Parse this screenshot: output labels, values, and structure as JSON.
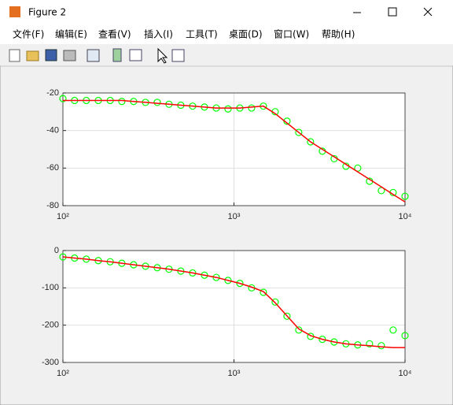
{
  "window_title": "Figure 2",
  "menu": [
    "文件(F)",
    "编辑(E)",
    "查看(V)",
    "插入(I)",
    "工具(T)",
    "桌面(D)",
    "窗口(W)",
    "帮助(H)"
  ],
  "chart_data": [
    {
      "type": "line",
      "xscale": "log",
      "grid": true,
      "x": [
        100,
        117,
        137,
        161,
        189,
        221,
        259,
        304,
        356,
        417,
        489,
        573,
        672,
        788,
        923,
        1082,
        1268,
        1486,
        1742,
        2041,
        2392,
        2804,
        3286,
        3852,
        4514,
        5291,
        6202,
        7269,
        8519,
        10000
      ],
      "series": [
        {
          "color": "#00ff00",
          "marker": "circle",
          "values": [
            -23,
            -24,
            -24,
            -24,
            -24,
            -24.5,
            -24.5,
            -25,
            -25,
            -26,
            -26.5,
            -27,
            -27.5,
            -28,
            -28.5,
            -28,
            -28,
            -27,
            -30,
            -35,
            -41,
            -46,
            -51,
            -55,
            -59,
            -60,
            -67,
            -72,
            -73,
            -75
          ]
        },
        {
          "color": "#ff0000",
          "marker": "none",
          "values": [
            -24,
            -24,
            -24,
            -24,
            -24,
            -24,
            -24.5,
            -25,
            -25.5,
            -26,
            -26.5,
            -27,
            -27.5,
            -28,
            -28,
            -28,
            -27.5,
            -27,
            -31,
            -36,
            -41,
            -46,
            -50,
            -54,
            -58,
            -62,
            -66,
            -70,
            -74,
            -78
          ]
        }
      ],
      "xlim": [
        100,
        10000
      ],
      "xticks": [
        {
          "value": 100,
          "label": "10²"
        },
        {
          "value": 1000,
          "label": "10³"
        },
        {
          "value": 10000,
          "label": "10⁴"
        }
      ],
      "ylim": [
        -80,
        -20
      ],
      "yticks": [
        -80,
        -60,
        -40,
        -20
      ]
    },
    {
      "type": "line",
      "xscale": "log",
      "grid": true,
      "x": [
        100,
        117,
        137,
        161,
        189,
        221,
        259,
        304,
        356,
        417,
        489,
        573,
        672,
        788,
        923,
        1082,
        1268,
        1486,
        1742,
        2041,
        2392,
        2804,
        3286,
        3852,
        4514,
        5291,
        6202,
        7269,
        8519,
        10000
      ],
      "series": [
        {
          "color": "#00ff00",
          "marker": "circle",
          "values": [
            -17,
            -20,
            -23,
            -27,
            -30,
            -34,
            -38,
            -42,
            -46,
            -50,
            -55,
            -60,
            -66,
            -72,
            -80,
            -88,
            -100,
            -112,
            -138,
            -176,
            -213,
            -230,
            -238,
            -245,
            -250,
            -253,
            -250,
            -255,
            -213,
            -228
          ]
        },
        {
          "color": "#ff0000",
          "marker": "none",
          "values": [
            -17,
            -20,
            -23,
            -27,
            -30,
            -34,
            -38,
            -42,
            -46,
            -50,
            -55,
            -60,
            -66,
            -72,
            -80,
            -88,
            -98,
            -110,
            -140,
            -175,
            -210,
            -228,
            -238,
            -245,
            -250,
            -253,
            -255,
            -258,
            -260,
            -260
          ]
        }
      ],
      "xlim": [
        100,
        10000
      ],
      "xticks": [
        {
          "value": 100,
          "label": "10²"
        },
        {
          "value": 1000,
          "label": "10³"
        },
        {
          "value": 10000,
          "label": "10⁴"
        }
      ],
      "ylim": [
        -300,
        0
      ],
      "yticks": [
        -300,
        -200,
        -100,
        0
      ]
    }
  ]
}
